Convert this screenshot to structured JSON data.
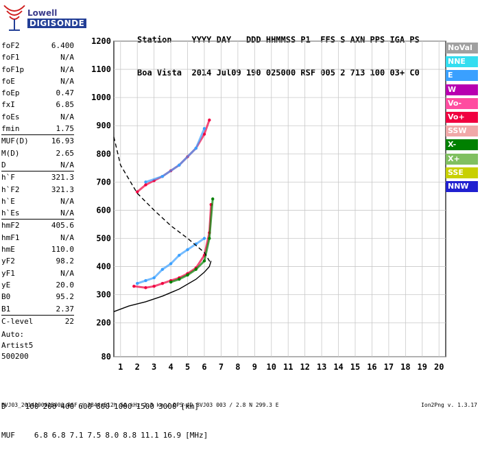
{
  "logo": {
    "line1": "Lowell",
    "line2": "DIGISONDE"
  },
  "header": {
    "row1": "Station    YYYY DAY   DDD HHMMSS P1  FFS S AXN PPS IGA PS",
    "row2": "Boa Vista  2014 Jul09 190 025000 RSF 005 2 713 100 03+ C0"
  },
  "params": {
    "g1": [
      [
        "foF2",
        "6.400"
      ],
      [
        "foF1",
        "N/A"
      ],
      [
        "foF1p",
        "N/A"
      ],
      [
        "foE",
        "N/A"
      ],
      [
        "foEp",
        "0.47"
      ],
      [
        "fxI",
        "6.85"
      ],
      [
        "foEs",
        "N/A"
      ],
      [
        "fmin",
        "1.75"
      ]
    ],
    "g2": [
      [
        "MUF(D)",
        "16.93"
      ],
      [
        "M(D)",
        "2.65"
      ],
      [
        "D",
        "N/A"
      ]
    ],
    "g3": [
      [
        "h`F",
        "321.3"
      ],
      [
        "h`F2",
        "321.3"
      ],
      [
        "h`E",
        "N/A"
      ],
      [
        "h`Es",
        "N/A"
      ]
    ],
    "g4": [
      [
        "hmF2",
        "405.6"
      ],
      [
        "hmF1",
        "N/A"
      ],
      [
        "hmE",
        "110.0"
      ],
      [
        "yF2",
        "98.2"
      ],
      [
        "yF1",
        "N/A"
      ],
      [
        "yE",
        "20.0"
      ],
      [
        "B0",
        "95.2"
      ],
      [
        "B1",
        "2.37"
      ]
    ],
    "g5": [
      [
        "C-level",
        "22"
      ]
    ]
  },
  "auto": {
    "l1": "Auto:",
    "l2": "Artist5",
    "l3": "500200"
  },
  "legend": [
    {
      "label": "NoVal",
      "color": "#a0a0a0"
    },
    {
      "label": "NNE",
      "color": "#33ddf0"
    },
    {
      "label": "E",
      "color": "#3aa0ff"
    },
    {
      "label": "W",
      "color": "#b800b0"
    },
    {
      "label": "Vo-",
      "color": "#ff4ca0"
    },
    {
      "label": "Vo+",
      "color": "#f00040"
    },
    {
      "label": "SSW",
      "color": "#f0a8a8"
    },
    {
      "label": "X-",
      "color": "#008000"
    },
    {
      "label": "X+",
      "color": "#80c060"
    },
    {
      "label": "SSE",
      "color": "#c8d000"
    },
    {
      "label": "NNW",
      "color": "#2020d0"
    }
  ],
  "chart_data": {
    "type": "scatter",
    "x_ticks": [
      1,
      2,
      3,
      4,
      5,
      6,
      7,
      8,
      9,
      10,
      11,
      12,
      13,
      14,
      15,
      16,
      17,
      18,
      19,
      20
    ],
    "y_ticks": [
      80,
      200,
      300,
      400,
      500,
      600,
      700,
      800,
      900,
      1000,
      1100,
      1200
    ],
    "xlim": [
      0.6,
      20.4
    ],
    "ylim": [
      80,
      1200
    ],
    "grid": true,
    "series": [
      {
        "color": "#3aa0ff",
        "x": [
          2.0,
          2.5,
          3.0,
          3.5,
          4.0,
          4.5,
          5.0,
          5.5,
          6.0
        ],
        "y": [
          340,
          350,
          360,
          390,
          410,
          440,
          460,
          480,
          500
        ]
      },
      {
        "color": "#f00040",
        "x": [
          1.8,
          2.5,
          3.0,
          3.5,
          4.0,
          4.5,
          5.0,
          5.5,
          6.0,
          6.3,
          6.4
        ],
        "y": [
          330,
          325,
          330,
          340,
          350,
          360,
          375,
          395,
          440,
          520,
          620
        ]
      },
      {
        "color": "#008000",
        "x": [
          4.0,
          4.5,
          5.0,
          5.5,
          6.0,
          6.3,
          6.5
        ],
        "y": [
          345,
          355,
          370,
          390,
          420,
          500,
          640
        ]
      },
      {
        "color": "#f00040",
        "x": [
          2.0,
          2.5,
          3.0,
          3.5,
          4.0,
          4.5,
          5.0,
          5.5,
          6.0,
          6.3
        ],
        "y": [
          665,
          690,
          705,
          720,
          740,
          760,
          790,
          820,
          870,
          920
        ]
      },
      {
        "color": "#3aa0ff",
        "x": [
          2.5,
          3.5,
          4.5,
          5.5,
          6.0
        ],
        "y": [
          700,
          720,
          760,
          820,
          890
        ]
      }
    ],
    "profile_solid": {
      "x": [
        0.6,
        1.5,
        2.5,
        3.5,
        4.5,
        5.5,
        6.0,
        6.3,
        6.4
      ],
      "y": [
        240,
        260,
        275,
        295,
        320,
        355,
        380,
        400,
        420
      ]
    },
    "profile_dashed": {
      "x": [
        0.6,
        1.0,
        2.0,
        3.0,
        4.0,
        5.0,
        6.0,
        6.4
      ],
      "y": [
        860,
        760,
        660,
        600,
        545,
        500,
        450,
        410
      ]
    }
  },
  "bottom": {
    "d_label": "D",
    "d_values": [
      "100",
      "200",
      "400",
      "600",
      "800",
      "1000",
      "1500",
      "3000"
    ],
    "d_unit": "[km]",
    "muf_label": "MUF",
    "muf_values": [
      "6.8",
      "6.8",
      "7.1",
      "7.5",
      "8.0",
      "8.8",
      "11.1",
      "16.9"
    ],
    "muf_unit": "[MHz]"
  },
  "footer": "BVJ03_2014190025000.RSF / 384fx512h 50 kHz 2.5 km / DPS-4D BVJ03 003 / 2.8 N 299.3 E",
  "version": "Ion2Png v. 1.3.17"
}
